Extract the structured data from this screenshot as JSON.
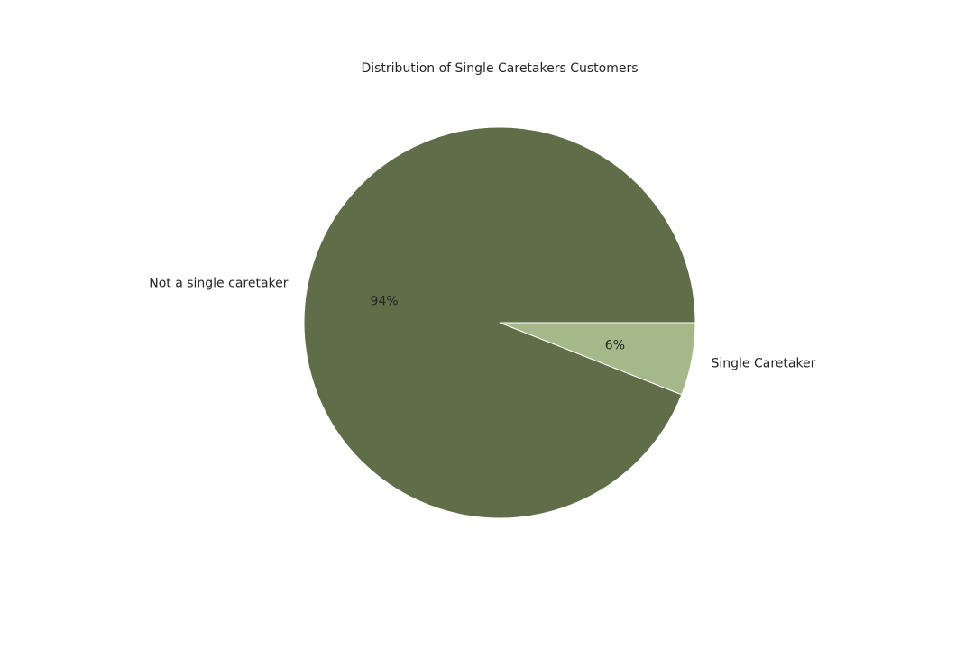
{
  "chart_data": {
    "type": "pie",
    "title": "Distribution of Single Caretakers Customers",
    "categories": [
      "Single Caretaker",
      "Not a single caretaker"
    ],
    "values": [
      6,
      94
    ],
    "value_labels": [
      "6%",
      "94%"
    ],
    "colors": [
      "#a5b88a",
      "#5f6d48"
    ],
    "start_angle_degrees": 0,
    "direction": "clockwise",
    "legend": "none"
  }
}
